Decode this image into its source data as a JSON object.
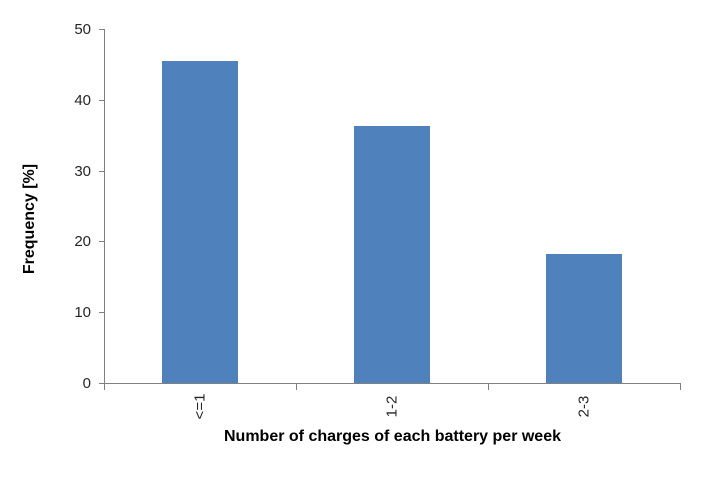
{
  "chart_data": {
    "type": "bar",
    "title": "",
    "categories": [
      "<=1",
      "1-2",
      "2-3"
    ],
    "values": [
      45.45,
      36.36,
      18.18
    ],
    "xlabel": "Number of charges of each battery per week",
    "ylabel": "Frequency [%]",
    "ylim": [
      0,
      50
    ],
    "yticks": [
      0,
      10,
      20,
      30,
      40,
      50
    ],
    "grid": "off",
    "legend": "none",
    "bar_color": "#4f81bd",
    "axis_color": "#808080",
    "tick_text_color": "#262626"
  }
}
